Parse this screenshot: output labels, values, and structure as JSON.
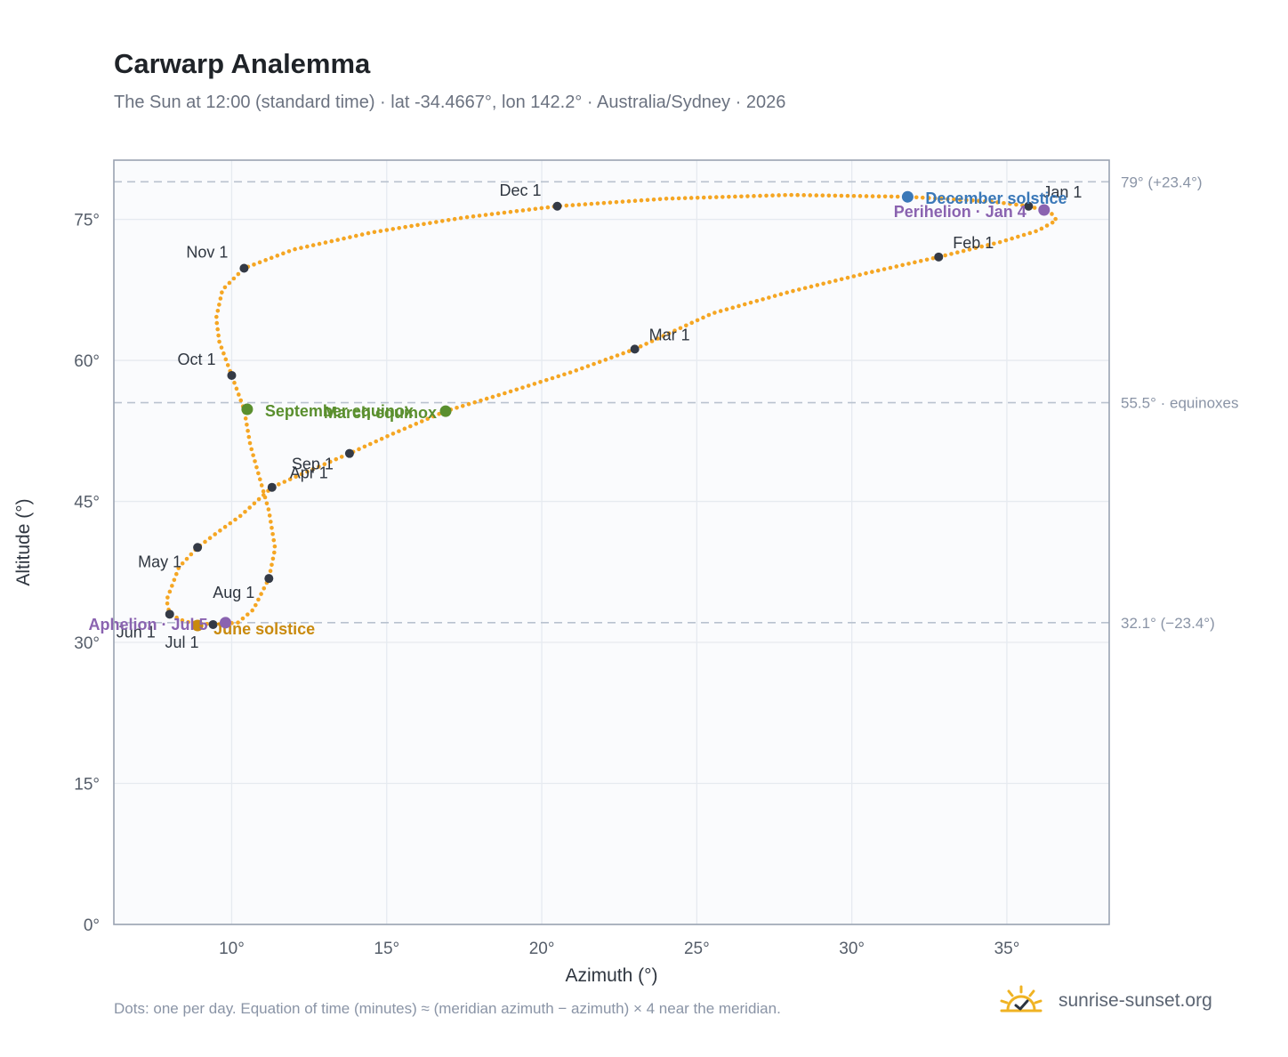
{
  "title": "Carwarp Analemma",
  "subtitle": "The Sun at 12:00 (standard time) · lat -34.4667°, lon 142.2° · Australia/Sydney · 2026",
  "footnote": "Dots: one per day. Equation of time (minutes) ≈ (meridian azimuth − azimuth) × 4 near the meridian.",
  "brand": {
    "name": "sunrise-sunset.org",
    "icon": "sun-logo-icon"
  },
  "colors": {
    "curve": "#f5a623",
    "month_dot": "#343a46",
    "december": "#3a78b8",
    "june": "#c98a0e",
    "equinox": "#5a8f2e",
    "apsis": "#8a63b0",
    "reference_line": "#b9c2cf"
  },
  "chart_data": {
    "type": "scatter",
    "xlabel": "Azimuth (°)",
    "ylabel": "Altitude (°)",
    "xlim": [
      6.2,
      38.3
    ],
    "ylim": [
      0,
      81.3
    ],
    "x_ticks": [
      10,
      15,
      20,
      25,
      30,
      35
    ],
    "x_tick_labels": [
      "10°",
      "15°",
      "20°",
      "25°",
      "30°",
      "35°"
    ],
    "y_ticks": [
      0,
      15,
      30,
      45,
      60,
      75
    ],
    "y_tick_labels": [
      "0°",
      "15°",
      "30°",
      "45°",
      "60°",
      "75°"
    ],
    "grid": true,
    "reference_lines": [
      {
        "y": 79.0,
        "label": "79° (+23.4°)"
      },
      {
        "y": 55.5,
        "label": "55.5° · equinoxes"
      },
      {
        "y": 32.1,
        "label": "32.1° (−23.4°)"
      }
    ],
    "path_dense": [
      [
        35.7,
        76.4
      ],
      [
        36.4,
        75.8
      ],
      [
        36.6,
        74.9
      ],
      [
        36.0,
        73.8
      ],
      [
        34.8,
        72.6
      ],
      [
        32.8,
        71.0
      ],
      [
        30.5,
        69.3
      ],
      [
        28.0,
        67.3
      ],
      [
        25.5,
        65.0
      ],
      [
        23.0,
        61.2
      ],
      [
        21.0,
        58.8
      ],
      [
        18.9,
        56.6
      ],
      [
        16.9,
        54.6
      ],
      [
        15.2,
        52.2
      ],
      [
        13.8,
        50.1
      ],
      [
        12.6,
        48.4
      ],
      [
        11.3,
        46.5
      ],
      [
        10.3,
        43.5
      ],
      [
        9.5,
        41.6
      ],
      [
        8.9,
        40.1
      ],
      [
        8.3,
        38.0
      ],
      [
        7.9,
        34.5
      ],
      [
        8.0,
        33.0
      ],
      [
        8.5,
        32.2
      ],
      [
        9.4,
        31.9
      ],
      [
        10.2,
        32.1
      ],
      [
        10.7,
        33.5
      ],
      [
        11.2,
        36.8
      ],
      [
        11.4,
        40.0
      ],
      [
        11.2,
        44.0
      ],
      [
        10.6,
        51.0
      ],
      [
        10.4,
        54.8
      ],
      [
        10.0,
        58.4
      ],
      [
        9.6,
        62.0
      ],
      [
        9.5,
        64.5
      ],
      [
        9.7,
        67.5
      ],
      [
        10.4,
        69.8
      ],
      [
        12.0,
        71.8
      ],
      [
        14.5,
        73.6
      ],
      [
        17.5,
        75.2
      ],
      [
        20.5,
        76.4
      ],
      [
        24.0,
        77.2
      ],
      [
        28.0,
        77.6
      ],
      [
        31.8,
        77.4
      ],
      [
        34.5,
        76.9
      ],
      [
        35.7,
        76.4
      ]
    ],
    "month_markers": [
      {
        "label": "Jan 1",
        "x": 35.7,
        "y": 76.4
      },
      {
        "label": "Feb 1",
        "x": 32.8,
        "y": 71.0
      },
      {
        "label": "Mar 1",
        "x": 23.0,
        "y": 61.2
      },
      {
        "label": "Apr 1",
        "x": 11.3,
        "y": 46.5
      },
      {
        "label": "May 1",
        "x": 8.9,
        "y": 40.1
      },
      {
        "label": "Jun 1",
        "x": 8.0,
        "y": 33.0
      },
      {
        "label": "Jul 1",
        "x": 9.4,
        "y": 31.9
      },
      {
        "label": "Aug 1",
        "x": 11.2,
        "y": 36.8
      },
      {
        "label": "Sep 1",
        "x": 13.8,
        "y": 50.1
      },
      {
        "label": "Oct 1",
        "x": 10.0,
        "y": 58.4
      },
      {
        "label": "Nov 1",
        "x": 10.4,
        "y": 69.8
      },
      {
        "label": "Dec 1",
        "x": 20.5,
        "y": 76.4
      }
    ],
    "events": [
      {
        "label": "December solstice",
        "x": 31.8,
        "y": 77.4,
        "color_key": "december"
      },
      {
        "label": "Perihelion · Jan 4",
        "x": 36.2,
        "y": 76.0,
        "color_key": "apsis"
      },
      {
        "label": "March equinox",
        "x": 16.9,
        "y": 54.6,
        "color_key": "equinox"
      },
      {
        "label": "September equinox",
        "x": 10.5,
        "y": 54.8,
        "color_key": "equinox"
      },
      {
        "label": "June solstice",
        "x": 8.9,
        "y": 31.8,
        "color_key": "june"
      },
      {
        "label": "Aphelion · Jul 5",
        "x": 9.8,
        "y": 32.1,
        "color_key": "apsis"
      }
    ]
  }
}
